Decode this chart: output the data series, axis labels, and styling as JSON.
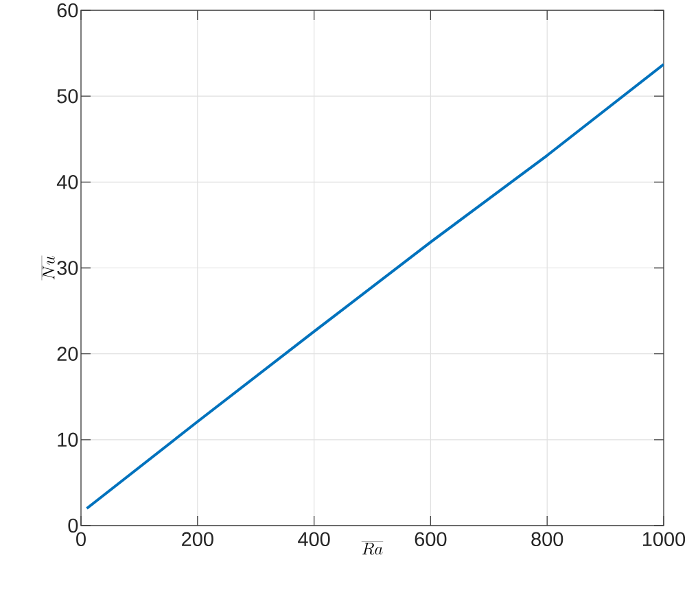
{
  "chart_data": {
    "type": "line",
    "xlabel": "\\overline{Ra}",
    "ylabel": "\\overline{Nu}",
    "x": [
      10,
      200,
      400,
      600,
      800,
      1000
    ],
    "series": [
      {
        "color": "#0072bd",
        "values": [
          2,
          12.1,
          22.6,
          33,
          43.1,
          53.7
        ]
      }
    ],
    "xlim": [
      0,
      1000
    ],
    "ylim": [
      0,
      60
    ],
    "xticks": [
      0,
      200,
      400,
      600,
      800,
      1000
    ],
    "yticks": [
      0,
      10,
      20,
      30,
      40,
      50,
      60
    ],
    "grid": true,
    "marker": "none",
    "line_style": "solid"
  }
}
